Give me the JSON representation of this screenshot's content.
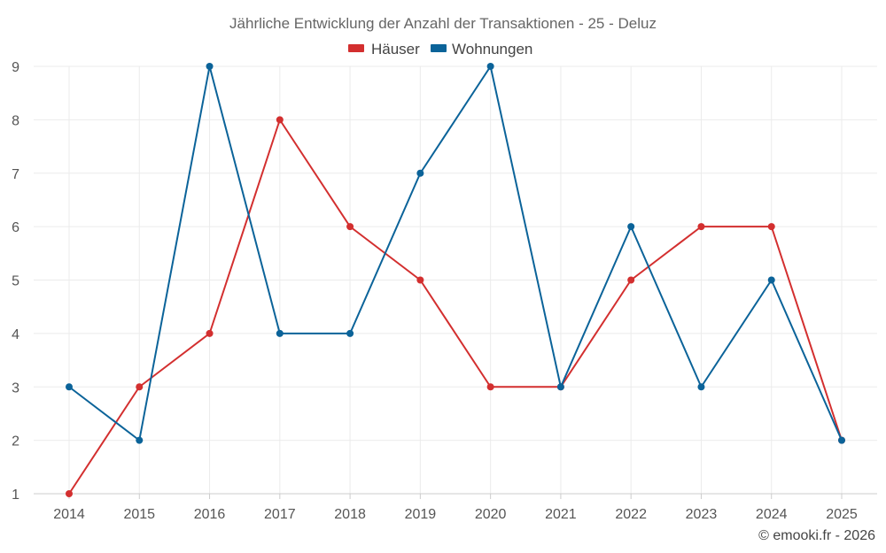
{
  "chart_data": {
    "type": "line",
    "title": "Jährliche Entwicklung der Anzahl der Transaktionen - 25 - Deluz",
    "categories": [
      "2014",
      "2015",
      "2016",
      "2017",
      "2018",
      "2019",
      "2020",
      "2021",
      "2022",
      "2023",
      "2024",
      "2025"
    ],
    "series": [
      {
        "name": "Häuser",
        "color": "#d32f2f",
        "values": [
          1,
          3,
          4,
          8,
          6,
          5,
          3,
          3,
          5,
          6,
          6,
          2
        ]
      },
      {
        "name": "Wohnungen",
        "color": "#0b6399",
        "values": [
          3,
          2,
          9,
          4,
          4,
          7,
          9,
          3,
          6,
          3,
          5,
          2
        ]
      }
    ],
    "yticks": [
      "1",
      "2",
      "3",
      "4",
      "5",
      "6",
      "7",
      "8",
      "9"
    ],
    "ylim": [
      1,
      9
    ],
    "xlabel": "",
    "ylabel": "",
    "grid": true,
    "legend_position": "top-center"
  },
  "credit": "© emooki.fr - 2026"
}
